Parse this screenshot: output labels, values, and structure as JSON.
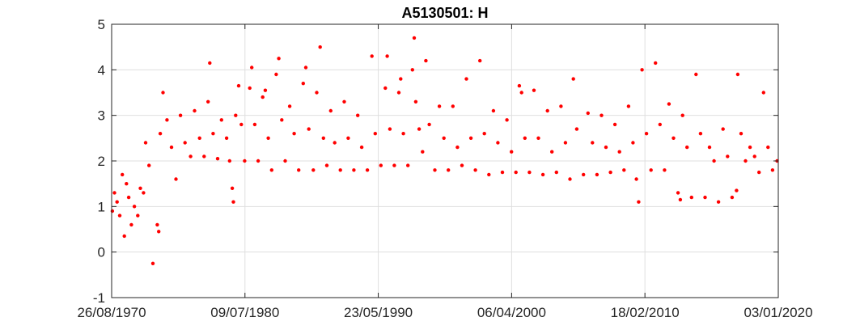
{
  "chart_data": {
    "type": "scatter",
    "title": "A5130501: H",
    "xlabel": "",
    "ylabel": "",
    "x_type": "date",
    "xlim": [
      "1970-08-26",
      "2020-01-03"
    ],
    "ylim": [
      -1,
      5
    ],
    "x_ticks": [
      "1970-08-26",
      "1980-07-09",
      "1990-05-23",
      "2000-04-06",
      "2010-02-18",
      "2020-01-03"
    ],
    "x_tick_labels": [
      "26/08/1970",
      "09/07/1980",
      "23/05/1990",
      "06/04/2000",
      "18/02/2010",
      "03/01/2020"
    ],
    "y_ticks": [
      -1,
      0,
      1,
      2,
      3,
      4,
      5
    ],
    "y_tick_labels": [
      "-1",
      "0",
      "1",
      "2",
      "3",
      "4",
      "5"
    ],
    "grid": true,
    "marker_color": "#ff0000",
    "series": [
      {
        "values": [
          [
            "1970-09-15",
            0.9
          ],
          [
            "1970-11-10",
            1.3
          ],
          [
            "1971-01-20",
            1.1
          ],
          [
            "1971-04-01",
            0.8
          ],
          [
            "1971-06-10",
            1.7
          ],
          [
            "1971-08-05",
            0.35
          ],
          [
            "1971-10-01",
            1.5
          ],
          [
            "1971-12-01",
            1.2
          ],
          [
            "1972-02-10",
            0.6
          ],
          [
            "1972-05-01",
            1.0
          ],
          [
            "1972-08-01",
            0.8
          ],
          [
            "1972-10-10",
            1.4
          ],
          [
            "1973-01-05",
            1.3
          ],
          [
            "1973-03-01",
            2.4
          ],
          [
            "1973-06-01",
            1.9
          ],
          [
            "1973-09-15",
            -0.25
          ],
          [
            "1974-01-10",
            0.6
          ],
          [
            "1974-02-20",
            0.45
          ],
          [
            "1974-04-01",
            2.6
          ],
          [
            "1974-06-15",
            3.5
          ],
          [
            "1974-10-01",
            2.9
          ],
          [
            "1975-02-01",
            2.3
          ],
          [
            "1975-06-01",
            1.6
          ],
          [
            "1975-10-01",
            3.0
          ],
          [
            "1976-02-01",
            2.4
          ],
          [
            "1976-07-01",
            2.1
          ],
          [
            "1976-10-15",
            3.1
          ],
          [
            "1977-03-01",
            2.5
          ],
          [
            "1977-07-01",
            2.1
          ],
          [
            "1977-10-15",
            3.3
          ],
          [
            "1977-12-01",
            4.15
          ],
          [
            "1978-03-01",
            2.6
          ],
          [
            "1978-07-01",
            2.05
          ],
          [
            "1978-10-15",
            2.9
          ],
          [
            "1979-03-01",
            2.5
          ],
          [
            "1979-05-20",
            2.0
          ],
          [
            "1979-08-01",
            1.4
          ],
          [
            "1979-09-01",
            1.1
          ],
          [
            "1979-11-01",
            3.0
          ],
          [
            "1980-01-20",
            3.65
          ],
          [
            "1980-04-01",
            2.8
          ],
          [
            "1980-07-01",
            2.0
          ],
          [
            "1980-11-15",
            3.6
          ],
          [
            "1981-01-10",
            4.05
          ],
          [
            "1981-04-01",
            2.8
          ],
          [
            "1981-07-01",
            2.0
          ],
          [
            "1981-11-01",
            3.4
          ],
          [
            "1982-01-10",
            3.55
          ],
          [
            "1982-04-01",
            2.5
          ],
          [
            "1982-07-01",
            1.8
          ],
          [
            "1982-11-01",
            3.9
          ],
          [
            "1983-01-10",
            4.25
          ],
          [
            "1983-04-01",
            2.9
          ],
          [
            "1983-07-01",
            2.0
          ],
          [
            "1983-11-01",
            3.2
          ],
          [
            "1984-03-01",
            2.6
          ],
          [
            "1984-07-01",
            1.8
          ],
          [
            "1984-11-01",
            3.7
          ],
          [
            "1985-01-10",
            4.05
          ],
          [
            "1985-04-01",
            2.7
          ],
          [
            "1985-08-01",
            1.8
          ],
          [
            "1985-11-01",
            3.5
          ],
          [
            "1986-02-01",
            4.5
          ],
          [
            "1986-05-01",
            2.5
          ],
          [
            "1986-08-01",
            1.9
          ],
          [
            "1986-11-15",
            3.1
          ],
          [
            "1987-03-01",
            2.4
          ],
          [
            "1987-08-01",
            1.8
          ],
          [
            "1987-11-15",
            3.3
          ],
          [
            "1988-03-01",
            2.5
          ],
          [
            "1988-08-01",
            1.8
          ],
          [
            "1988-11-15",
            3.0
          ],
          [
            "1989-03-01",
            2.3
          ],
          [
            "1989-08-01",
            1.8
          ],
          [
            "1989-12-01",
            4.3
          ],
          [
            "1990-03-01",
            2.6
          ],
          [
            "1990-08-01",
            1.9
          ],
          [
            "1990-12-01",
            3.6
          ],
          [
            "1991-01-20",
            4.3
          ],
          [
            "1991-04-01",
            2.7
          ],
          [
            "1991-08-01",
            1.9
          ],
          [
            "1991-12-01",
            3.5
          ],
          [
            "1992-01-20",
            3.8
          ],
          [
            "1992-04-01",
            2.6
          ],
          [
            "1992-08-01",
            1.9
          ],
          [
            "1992-12-01",
            4.0
          ],
          [
            "1993-01-20",
            4.7
          ],
          [
            "1993-03-01",
            3.3
          ],
          [
            "1993-06-01",
            2.7
          ],
          [
            "1993-09-01",
            2.2
          ],
          [
            "1993-12-01",
            4.2
          ],
          [
            "1994-03-01",
            2.8
          ],
          [
            "1994-08-01",
            1.8
          ],
          [
            "1994-12-01",
            3.2
          ],
          [
            "1995-04-01",
            2.5
          ],
          [
            "1995-08-01",
            1.8
          ],
          [
            "1995-12-01",
            3.2
          ],
          [
            "1996-04-01",
            2.3
          ],
          [
            "1996-08-01",
            1.9
          ],
          [
            "1996-12-01",
            3.8
          ],
          [
            "1997-04-01",
            2.5
          ],
          [
            "1997-08-01",
            1.8
          ],
          [
            "1997-12-01",
            4.2
          ],
          [
            "1998-04-01",
            2.6
          ],
          [
            "1998-08-01",
            1.7
          ],
          [
            "1998-12-01",
            3.1
          ],
          [
            "1999-04-01",
            2.4
          ],
          [
            "1999-08-01",
            1.75
          ],
          [
            "1999-12-01",
            2.9
          ],
          [
            "2000-04-01",
            2.2
          ],
          [
            "2000-08-01",
            1.75
          ],
          [
            "2000-11-01",
            3.65
          ],
          [
            "2001-01-01",
            3.5
          ],
          [
            "2001-04-01",
            2.5
          ],
          [
            "2001-08-01",
            1.75
          ],
          [
            "2001-12-01",
            3.55
          ],
          [
            "2002-04-01",
            2.5
          ],
          [
            "2002-08-01",
            1.7
          ],
          [
            "2002-12-01",
            3.1
          ],
          [
            "2003-04-01",
            2.2
          ],
          [
            "2003-08-01",
            1.75
          ],
          [
            "2003-12-01",
            3.2
          ],
          [
            "2004-04-01",
            2.4
          ],
          [
            "2004-08-01",
            1.6
          ],
          [
            "2004-11-01",
            3.8
          ],
          [
            "2005-02-01",
            2.7
          ],
          [
            "2005-08-01",
            1.7
          ],
          [
            "2005-12-01",
            3.05
          ],
          [
            "2006-04-01",
            2.4
          ],
          [
            "2006-08-01",
            1.7
          ],
          [
            "2006-12-01",
            3.0
          ],
          [
            "2007-04-01",
            2.3
          ],
          [
            "2007-08-01",
            1.75
          ],
          [
            "2007-12-01",
            2.8
          ],
          [
            "2008-04-01",
            2.2
          ],
          [
            "2008-08-01",
            1.8
          ],
          [
            "2008-12-01",
            3.2
          ],
          [
            "2009-04-01",
            2.4
          ],
          [
            "2009-07-01",
            1.6
          ],
          [
            "2009-09-01",
            1.1
          ],
          [
            "2009-12-01",
            4.0
          ],
          [
            "2010-04-01",
            2.6
          ],
          [
            "2010-08-01",
            1.8
          ],
          [
            "2010-12-01",
            4.15
          ],
          [
            "2011-04-01",
            2.8
          ],
          [
            "2011-08-01",
            1.8
          ],
          [
            "2011-12-01",
            3.25
          ],
          [
            "2012-04-01",
            2.5
          ],
          [
            "2012-08-01",
            1.3
          ],
          [
            "2012-10-01",
            1.15
          ],
          [
            "2012-12-01",
            3.0
          ],
          [
            "2013-04-01",
            2.3
          ],
          [
            "2013-08-01",
            1.2
          ],
          [
            "2013-12-01",
            3.9
          ],
          [
            "2014-04-01",
            2.6
          ],
          [
            "2014-08-01",
            1.2
          ],
          [
            "2014-12-01",
            2.3
          ],
          [
            "2015-04-01",
            2.0
          ],
          [
            "2015-08-01",
            1.1
          ],
          [
            "2015-12-01",
            2.7
          ],
          [
            "2016-04-01",
            2.1
          ],
          [
            "2016-08-01",
            1.2
          ],
          [
            "2016-12-01",
            1.35
          ],
          [
            "2017-01-01",
            3.9
          ],
          [
            "2017-04-01",
            2.6
          ],
          [
            "2017-08-01",
            2.0
          ],
          [
            "2017-12-01",
            2.3
          ],
          [
            "2018-04-01",
            2.1
          ],
          [
            "2018-08-01",
            1.75
          ],
          [
            "2018-12-01",
            3.5
          ],
          [
            "2019-04-01",
            2.3
          ],
          [
            "2019-08-01",
            1.8
          ],
          [
            "2019-12-01",
            2.0
          ]
        ]
      }
    ]
  }
}
